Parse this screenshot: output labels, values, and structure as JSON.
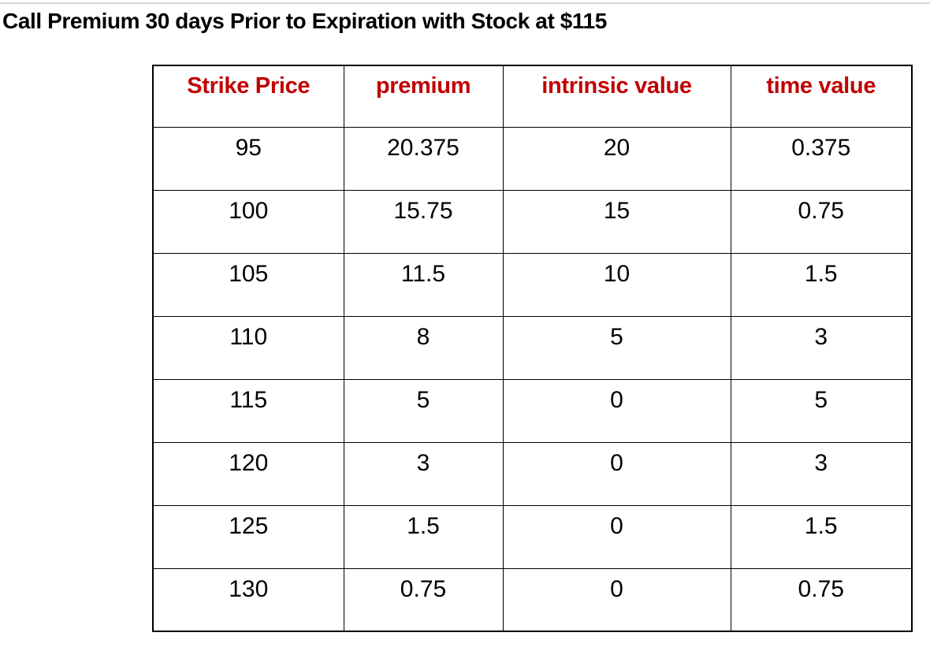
{
  "document": {
    "title": "Call Premium 30 days Prior to Expiration with Stock at $115"
  },
  "table": {
    "headers": [
      "Strike Price",
      "premium",
      "intrinsic value",
      "time value"
    ],
    "rows": [
      [
        "95",
        "20.375",
        "20",
        "0.375"
      ],
      [
        "100",
        "15.75",
        "15",
        "0.75"
      ],
      [
        "105",
        "11.5",
        "10",
        "1.5"
      ],
      [
        "110",
        "8",
        "5",
        "3"
      ],
      [
        "115",
        "5",
        "0",
        "5"
      ],
      [
        "120",
        "3",
        "0",
        "3"
      ],
      [
        "125",
        "1.5",
        "0",
        "1.5"
      ],
      [
        "130",
        "0.75",
        "0",
        "0.75"
      ]
    ]
  },
  "chart_data": {
    "type": "table",
    "title": "Call Premium 30 days Prior to Expiration with Stock at $115",
    "columns": [
      "Strike Price",
      "premium",
      "intrinsic value",
      "time value"
    ],
    "rows": [
      [
        95,
        20.375,
        20,
        0.375
      ],
      [
        100,
        15.75,
        15,
        0.75
      ],
      [
        105,
        11.5,
        10,
        1.5
      ],
      [
        110,
        8,
        5,
        3
      ],
      [
        115,
        5,
        0,
        5
      ],
      [
        120,
        3,
        0,
        3
      ],
      [
        125,
        1.5,
        0,
        1.5
      ],
      [
        130,
        0.75,
        0,
        0.75
      ]
    ]
  },
  "colors": {
    "header_text": "#C00000",
    "body_text": "#000000",
    "table_border": "#000000",
    "background": "#FFFFFF",
    "top_rule": "#D9D9D9"
  }
}
